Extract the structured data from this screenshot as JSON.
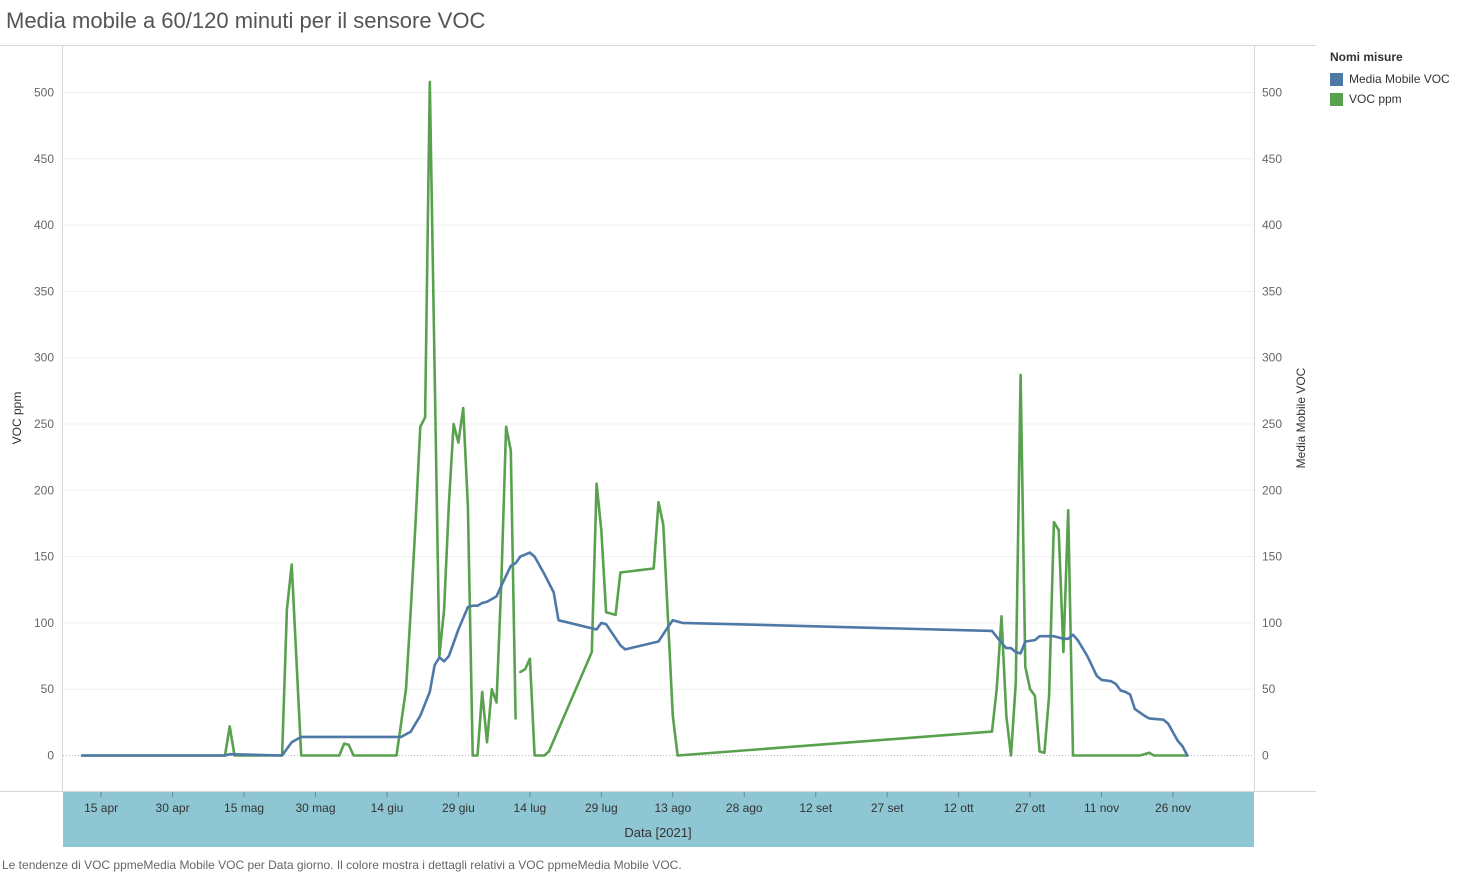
{
  "page": {
    "title": "Media mobile a 60/120 minuti per il sensore VOC",
    "caption": "Le tendenze di VOC ppmeMedia Mobile VOC per Data giorno. Il colore mostra i dettagli relativi a VOC ppmeMedia Mobile VOC."
  },
  "legend": {
    "title": "Nomi misure",
    "items": [
      {
        "label": "Media Mobile VOC",
        "color": "#4e79a7"
      },
      {
        "label": "VOC ppm",
        "color": "#59a14f"
      }
    ]
  },
  "chart_data": {
    "type": "line",
    "xlabel": "Data [2021]",
    "ylabel_left": "VOC ppm",
    "ylabel_right": "Media Mobile VOC",
    "ylim": [
      0,
      520
    ],
    "yticks": [
      0,
      50,
      100,
      150,
      200,
      250,
      300,
      350,
      400,
      450,
      500
    ],
    "xlim": [
      "2021-04-07",
      "2021-12-13"
    ],
    "x_ticks": [
      {
        "date": "2021-04-15",
        "label": "15 apr"
      },
      {
        "date": "2021-04-30",
        "label": "30 apr"
      },
      {
        "date": "2021-05-15",
        "label": "15 mag"
      },
      {
        "date": "2021-05-30",
        "label": "30 mag"
      },
      {
        "date": "2021-06-14",
        "label": "14 giu"
      },
      {
        "date": "2021-06-29",
        "label": "29 giu"
      },
      {
        "date": "2021-07-14",
        "label": "14 lug"
      },
      {
        "date": "2021-07-29",
        "label": "29 lug"
      },
      {
        "date": "2021-08-13",
        "label": "13 ago"
      },
      {
        "date": "2021-08-28",
        "label": "28 ago"
      },
      {
        "date": "2021-09-12",
        "label": "12 set"
      },
      {
        "date": "2021-09-27",
        "label": "27 set"
      },
      {
        "date": "2021-10-12",
        "label": "12 ott"
      },
      {
        "date": "2021-10-27",
        "label": "27 ott"
      },
      {
        "date": "2021-11-11",
        "label": "11 nov"
      },
      {
        "date": "2021-11-26",
        "label": "26 nov"
      }
    ],
    "grid": true,
    "legend_position": "top-right",
    "series": [
      {
        "name": "Media Mobile VOC",
        "color": "#4e79a7",
        "segments": [
          [
            [
              "2021-04-11",
              0
            ],
            [
              "2021-05-11",
              0
            ],
            [
              "2021-05-12",
              1
            ],
            [
              "2021-05-23",
              0
            ],
            [
              "2021-05-25",
              10
            ],
            [
              "2021-05-27",
              14
            ],
            [
              "2021-06-04",
              14
            ],
            [
              "2021-06-05",
              14
            ],
            [
              "2021-06-06",
              14
            ],
            [
              "2021-06-17",
              14
            ],
            [
              "2021-06-19",
              18
            ],
            [
              "2021-06-21",
              30
            ],
            [
              "2021-06-23",
              48
            ],
            [
              "2021-06-24",
              68
            ],
            [
              "2021-06-25",
              74
            ],
            [
              "2021-06-26",
              71
            ],
            [
              "2021-06-27",
              75
            ],
            [
              "2021-06-29",
              95
            ],
            [
              "2021-07-01",
              112
            ],
            [
              "2021-07-02",
              113
            ],
            [
              "2021-07-03",
              113
            ],
            [
              "2021-07-04",
              115
            ],
            [
              "2021-07-05",
              116
            ],
            [
              "2021-07-07",
              120
            ],
            [
              "2021-07-08",
              128
            ],
            [
              "2021-07-10",
              143
            ],
            [
              "2021-07-11",
              145
            ],
            [
              "2021-07-12",
              150
            ],
            [
              "2021-07-14",
              153
            ],
            [
              "2021-07-15",
              150
            ],
            [
              "2021-07-17",
              137
            ],
            [
              "2021-07-19",
              123
            ],
            [
              "2021-07-20",
              102
            ],
            [
              "2021-07-28",
              95
            ],
            [
              "2021-07-29",
              100
            ],
            [
              "2021-07-30",
              99
            ],
            [
              "2021-08-02",
              83
            ],
            [
              "2021-08-03",
              80
            ],
            [
              "2021-08-10",
              86
            ],
            [
              "2021-08-12",
              97
            ],
            [
              "2021-08-13",
              102
            ],
            [
              "2021-08-15",
              100
            ],
            [
              "2021-10-19",
              94
            ],
            [
              "2021-10-21",
              85
            ],
            [
              "2021-10-22",
              81
            ],
            [
              "2021-10-23",
              81
            ],
            [
              "2021-10-24",
              78
            ],
            [
              "2021-10-25",
              77
            ],
            [
              "2021-10-26",
              86
            ],
            [
              "2021-10-28",
              87
            ],
            [
              "2021-10-29",
              90
            ],
            [
              "2021-11-01",
              90
            ],
            [
              "2021-11-03",
              88
            ],
            [
              "2021-11-04",
              88
            ],
            [
              "2021-11-05",
              91
            ],
            [
              "2021-11-06",
              87
            ],
            [
              "2021-11-08",
              75
            ],
            [
              "2021-11-10",
              60
            ],
            [
              "2021-11-11",
              57
            ],
            [
              "2021-11-13",
              56
            ],
            [
              "2021-11-14",
              54
            ],
            [
              "2021-11-15",
              49
            ],
            [
              "2021-11-16",
              48
            ],
            [
              "2021-11-17",
              46
            ],
            [
              "2021-11-18",
              35
            ],
            [
              "2021-11-20",
              30
            ],
            [
              "2021-11-21",
              28
            ],
            [
              "2021-11-24",
              27
            ],
            [
              "2021-11-25",
              24
            ],
            [
              "2021-11-27",
              11
            ],
            [
              "2021-11-28",
              7
            ],
            [
              "2021-11-29",
              0
            ]
          ]
        ]
      },
      {
        "name": "VOC ppm",
        "color": "#59a14f",
        "segments": [
          [
            [
              "2021-04-11",
              0
            ],
            [
              "2021-05-11",
              0
            ],
            [
              "2021-05-12",
              22
            ],
            [
              "2021-05-13",
              0
            ],
            [
              "2021-05-23",
              0
            ],
            [
              "2021-05-24",
              110
            ],
            [
              "2021-05-25",
              144
            ],
            [
              "2021-05-27",
              0
            ],
            [
              "2021-06-04",
              0
            ],
            [
              "2021-06-05",
              9
            ],
            [
              "2021-06-06",
              8
            ],
            [
              "2021-06-07",
              0
            ],
            [
              "2021-06-16",
              0
            ],
            [
              "2021-06-18",
              50
            ],
            [
              "2021-06-19",
              110
            ],
            [
              "2021-06-20",
              175
            ],
            [
              "2021-06-21",
              248
            ],
            [
              "2021-06-22",
              255
            ],
            [
              "2021-06-23",
              508
            ],
            [
              "2021-06-25",
              75
            ],
            [
              "2021-06-26",
              110
            ],
            [
              "2021-06-27",
              190
            ],
            [
              "2021-06-28",
              250
            ],
            [
              "2021-06-29",
              236
            ],
            [
              "2021-06-30",
              262
            ],
            [
              "2021-07-01",
              188
            ],
            [
              "2021-07-02",
              0
            ],
            [
              "2021-07-03",
              0
            ],
            [
              "2021-07-04",
              48
            ],
            [
              "2021-07-05",
              10
            ],
            [
              "2021-07-06",
              50
            ],
            [
              "2021-07-07",
              40
            ],
            [
              "2021-07-08",
              130
            ],
            [
              "2021-07-09",
              248
            ],
            [
              "2021-07-10",
              230
            ],
            [
              "2021-07-11",
              28
            ]
          ],
          [
            [
              "2021-07-12",
              63
            ],
            [
              "2021-07-13",
              65
            ],
            [
              "2021-07-14",
              73
            ],
            [
              "2021-07-15",
              0
            ],
            [
              "2021-07-17",
              0
            ],
            [
              "2021-07-18",
              3
            ],
            [
              "2021-07-27",
              78
            ],
            [
              "2021-07-28",
              205
            ],
            [
              "2021-07-29",
              170
            ],
            [
              "2021-07-30",
              108
            ],
            [
              "2021-08-01",
              106
            ],
            [
              "2021-08-02",
              138
            ],
            [
              "2021-08-09",
              141
            ],
            [
              "2021-08-10",
              191
            ],
            [
              "2021-08-11",
              174
            ],
            [
              "2021-08-13",
              30
            ],
            [
              "2021-08-14",
              0
            ],
            [
              "2021-10-19",
              18
            ],
            [
              "2021-10-20",
              50
            ],
            [
              "2021-10-21",
              105
            ],
            [
              "2021-10-22",
              30
            ],
            [
              "2021-10-23",
              0
            ],
            [
              "2021-10-24",
              55
            ],
            [
              "2021-10-25",
              287
            ],
            [
              "2021-10-26",
              67
            ],
            [
              "2021-10-27",
              50
            ],
            [
              "2021-10-28",
              45
            ],
            [
              "2021-10-29",
              3
            ],
            [
              "2021-10-30",
              2
            ],
            [
              "2021-10-31",
              45
            ],
            [
              "2021-11-01",
              176
            ],
            [
              "2021-11-02",
              170
            ],
            [
              "2021-11-03",
              78
            ],
            [
              "2021-11-04",
              185
            ],
            [
              "2021-11-05",
              0
            ],
            [
              "2021-11-19",
              0
            ],
            [
              "2021-11-20",
              1
            ],
            [
              "2021-11-21",
              2
            ],
            [
              "2021-11-22",
              0
            ],
            [
              "2021-11-29",
              0
            ]
          ]
        ]
      }
    ]
  }
}
